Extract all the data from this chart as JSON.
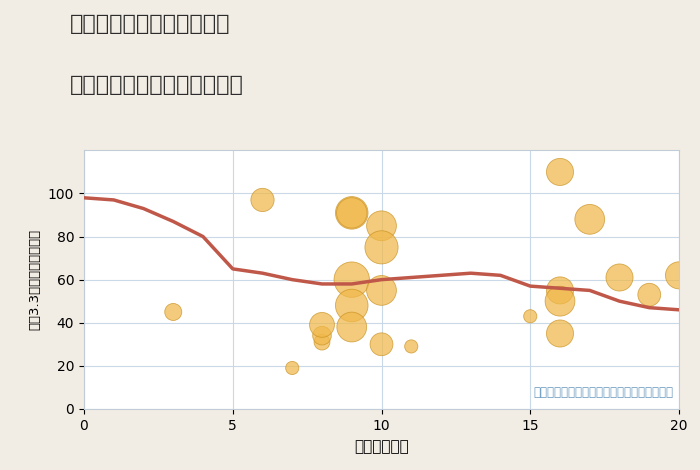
{
  "title_line1": "岐阜県郡上市大和町徳永の",
  "title_line2": "駅距離別中古マンション価格",
  "xlabel": "駅距離（分）",
  "ylabel": "坪（3.3㎡）単価（万円）",
  "fig_background_color": "#f2ede4",
  "plot_background": "#ffffff",
  "annotation": "円の大きさは、取引のあった物件面積を示す",
  "xlim": [
    0,
    20
  ],
  "ylim": [
    0,
    120
  ],
  "yticks": [
    0,
    20,
    40,
    60,
    80,
    100
  ],
  "xticks": [
    0,
    5,
    10,
    15,
    20
  ],
  "line_x": [
    0,
    1,
    2,
    3,
    4,
    5,
    6,
    7,
    8,
    9,
    10,
    11,
    12,
    13,
    14,
    15,
    16,
    17,
    18,
    19,
    20
  ],
  "line_y": [
    98,
    97,
    93,
    87,
    80,
    65,
    63,
    60,
    58,
    58,
    60,
    61,
    62,
    63,
    62,
    57,
    56,
    55,
    50,
    47,
    46
  ],
  "line_color": "#c0584a",
  "line_width": 2.5,
  "scatter_x": [
    3,
    6,
    7,
    8,
    8,
    8,
    9,
    9,
    9,
    9,
    9,
    10,
    10,
    10,
    10,
    11,
    15,
    16,
    16,
    16,
    16,
    17,
    18,
    19,
    20
  ],
  "scatter_y": [
    45,
    97,
    19,
    31,
    34,
    39,
    91,
    91,
    60,
    48,
    38,
    85,
    75,
    55,
    30,
    29,
    43,
    110,
    55,
    50,
    35,
    88,
    61,
    53,
    62
  ],
  "scatter_size": [
    150,
    280,
    90,
    130,
    180,
    320,
    550,
    480,
    650,
    550,
    460,
    460,
    570,
    460,
    270,
    90,
    90,
    380,
    380,
    460,
    380,
    460,
    380,
    270,
    380
  ],
  "scatter_color": "#f0b84a",
  "scatter_alpha": 0.72,
  "scatter_edge_color": "#c89020",
  "annotation_color": "#6a9abf",
  "annotation_fontsize": 8.5,
  "title_fontsize": 16,
  "axis_label_fontsize": 11,
  "tick_fontsize": 10
}
